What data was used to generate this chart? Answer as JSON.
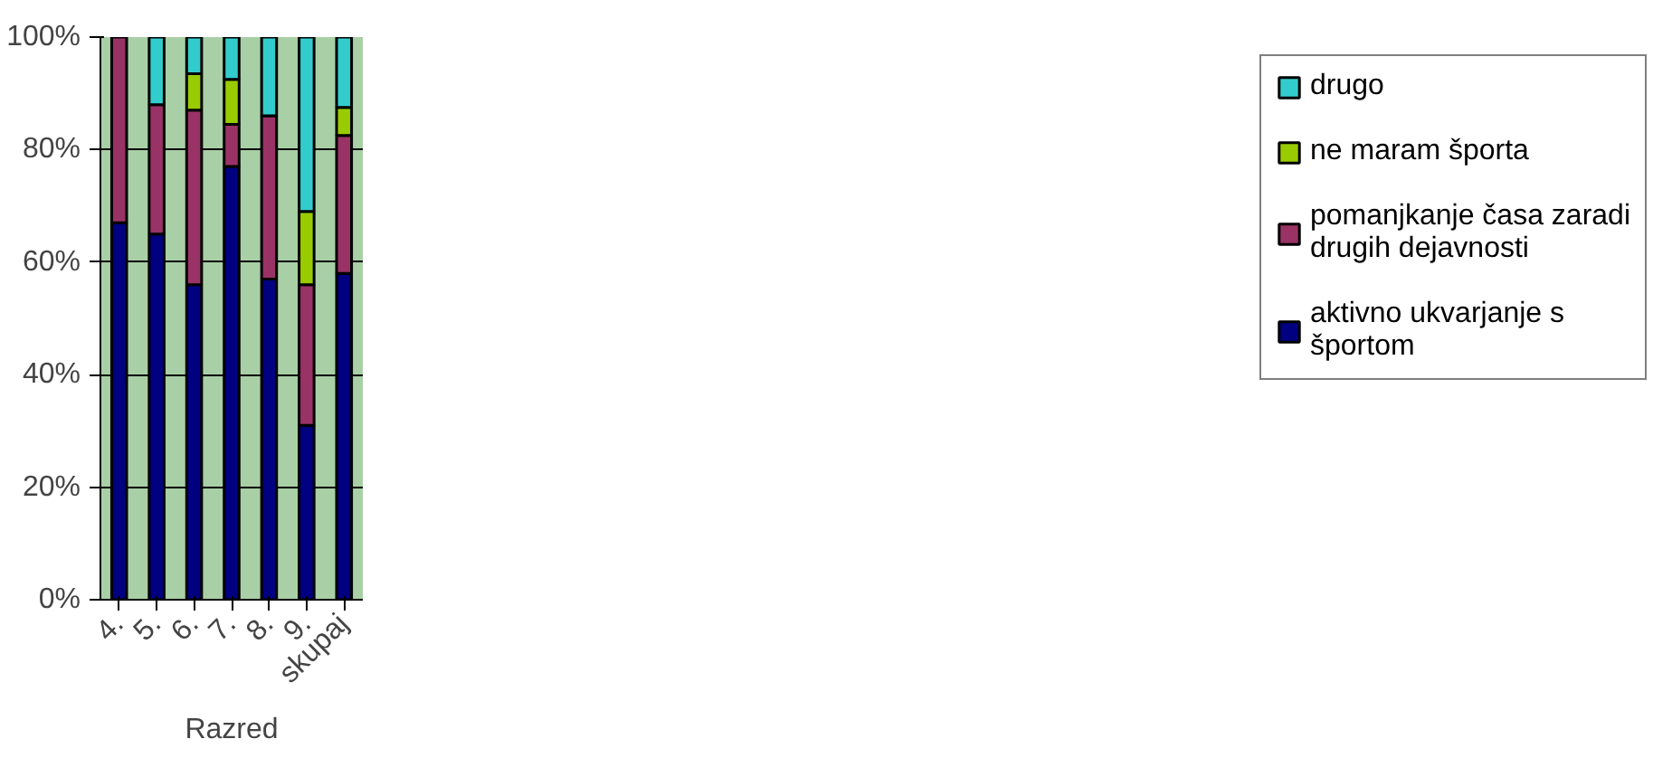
{
  "chart_data": {
    "type": "bar",
    "stacked": true,
    "xlabel": "Razred",
    "categories": [
      "4.",
      "5.",
      "6.",
      "7.",
      "8.",
      "9.",
      "skupaj"
    ],
    "series": [
      {
        "name": "aktivno ukvarjanje s športom",
        "color": "#000080",
        "values": [
          67,
          65,
          56,
          77,
          57,
          31,
          58
        ]
      },
      {
        "name": "pomanjkanje časa zaradi drugih dejavnosti",
        "color": "#993366",
        "values": [
          33,
          23,
          31,
          7.5,
          29,
          25,
          24.5
        ]
      },
      {
        "name": "ne maram športa",
        "color": "#99cc00",
        "values": [
          null,
          null,
          6.5,
          8,
          null,
          13,
          5
        ]
      },
      {
        "name": "drugo",
        "color": "#33cccc",
        "values": [
          null,
          12,
          6.5,
          7.5,
          14,
          31,
          12.5
        ]
      }
    ],
    "ylim": [
      0,
      100
    ],
    "yticks": [
      {
        "value": 0,
        "label": "0%"
      },
      {
        "value": 20,
        "label": "20%"
      },
      {
        "value": 40,
        "label": "40%"
      },
      {
        "value": 60,
        "label": "60%"
      },
      {
        "value": 80,
        "label": "80%"
      },
      {
        "value": 100,
        "label": "100%"
      }
    ],
    "grid": "y",
    "legend": "right"
  }
}
